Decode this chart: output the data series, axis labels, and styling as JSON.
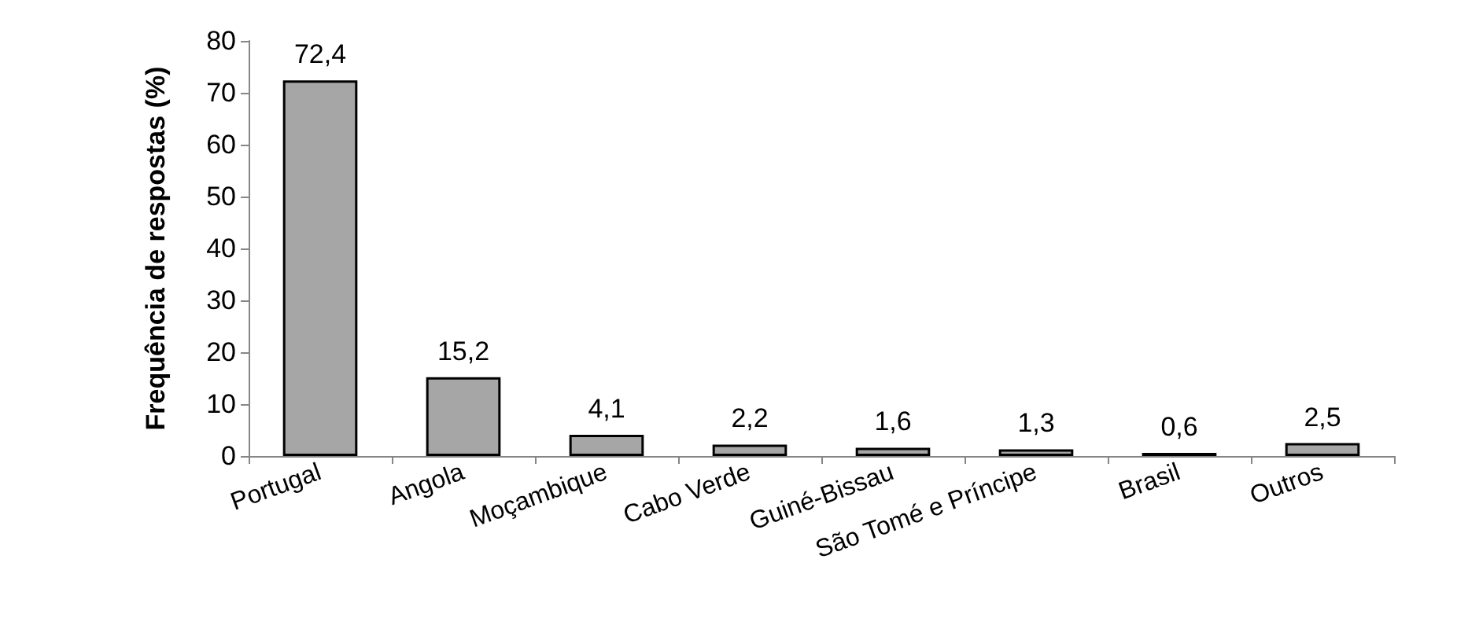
{
  "chart_data": {
    "type": "bar",
    "ylabel": "Frequência de respostas (%)",
    "categories": [
      "Portugal",
      "Angola",
      "Moçambique",
      "Cabo Verde",
      "Guiné-Bissau",
      "São Tomé e Príncipe",
      "Brasil",
      "Outros"
    ],
    "values": [
      72.4,
      15.2,
      4.1,
      2.2,
      1.6,
      1.3,
      0.6,
      2.5
    ],
    "value_labels": [
      "72,4",
      "15,2",
      "4,1",
      "2,2",
      "1,6",
      "1,3",
      "0,6",
      "2,5"
    ],
    "color": "#a6a6a6",
    "ylim": [
      0,
      80
    ],
    "yticks": [
      0,
      10,
      20,
      30,
      40,
      50,
      60,
      70,
      80
    ],
    "grid": false
  }
}
